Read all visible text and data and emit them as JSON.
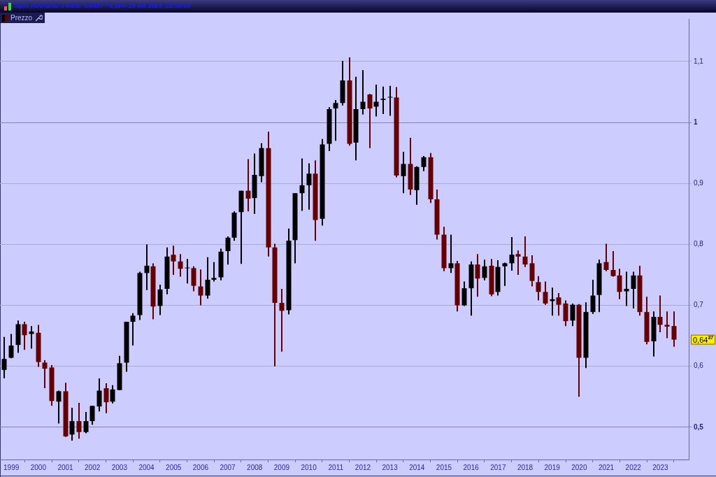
{
  "chart_data": {
    "type": "candlestick",
    "title": "Spot AUD/USD 3 mesi: 0,6437 +0,16% 29 set 2023, 22:59:59",
    "categories": [
      null,
      "1999",
      null,
      null,
      null,
      "2000",
      null,
      null,
      null,
      "2001",
      null,
      null,
      null,
      "2002",
      null,
      null,
      null,
      "2003",
      null,
      null,
      null,
      "2004",
      null,
      null,
      null,
      "2005",
      null,
      null,
      null,
      "2006",
      null,
      null,
      null,
      "2007",
      null,
      null,
      null,
      "2008",
      null,
      null,
      null,
      "2009",
      null,
      null,
      null,
      "2010",
      null,
      null,
      null,
      "2011",
      null,
      null,
      null,
      "2012",
      null,
      null,
      null,
      "2013",
      null,
      null,
      null,
      "2014",
      null,
      null,
      null,
      "2015",
      null,
      null,
      null,
      "2016",
      null,
      null,
      null,
      "2017",
      null,
      null,
      null,
      "2018",
      null,
      null,
      null,
      "2019",
      null,
      null,
      null,
      "2020",
      null,
      null,
      null,
      "2021",
      null,
      null,
      null,
      "2022",
      null,
      null,
      null,
      "2023",
      null,
      null
    ],
    "series": [
      {
        "name": "Prezzo",
        "ohlc": [
          [
            0.594,
            0.648,
            0.58,
            0.612
          ],
          [
            0.614,
            0.653,
            0.613,
            0.634
          ],
          [
            0.635,
            0.675,
            0.622,
            0.669
          ],
          [
            0.669,
            0.673,
            0.627,
            0.651
          ],
          [
            0.653,
            0.666,
            0.629,
            0.657
          ],
          [
            0.655,
            0.668,
            0.599,
            0.607
          ],
          [
            0.606,
            0.61,
            0.564,
            0.596
          ],
          [
            0.598,
            0.602,
            0.535,
            0.543
          ],
          [
            0.542,
            0.56,
            0.506,
            0.559
          ],
          [
            0.559,
            0.573,
            0.484,
            0.485
          ],
          [
            0.488,
            0.532,
            0.478,
            0.51
          ],
          [
            0.51,
            0.54,
            0.481,
            0.492
          ],
          [
            0.492,
            0.525,
            0.49,
            0.51
          ],
          [
            0.51,
            0.535,
            0.504,
            0.535
          ],
          [
            0.534,
            0.58,
            0.526,
            0.56
          ],
          [
            0.564,
            0.572,
            0.523,
            0.541
          ],
          [
            0.542,
            0.569,
            0.539,
            0.562
          ],
          [
            0.561,
            0.617,
            0.561,
            0.605
          ],
          [
            0.606,
            0.673,
            0.591,
            0.673
          ],
          [
            0.673,
            0.687,
            0.634,
            0.683
          ],
          [
            0.684,
            0.755,
            0.676,
            0.753
          ],
          [
            0.753,
            0.8,
            0.725,
            0.765
          ],
          [
            0.764,
            0.769,
            0.677,
            0.698
          ],
          [
            0.699,
            0.734,
            0.684,
            0.726
          ],
          [
            0.727,
            0.795,
            0.718,
            0.78
          ],
          [
            0.783,
            0.798,
            0.75,
            0.772
          ],
          [
            0.772,
            0.784,
            0.747,
            0.76
          ],
          [
            0.761,
            0.776,
            0.736,
            0.762
          ],
          [
            0.761,
            0.764,
            0.723,
            0.732
          ],
          [
            0.731,
            0.759,
            0.7,
            0.716
          ],
          [
            0.716,
            0.779,
            0.711,
            0.742
          ],
          [
            0.742,
            0.771,
            0.739,
            0.745
          ],
          [
            0.746,
            0.793,
            0.741,
            0.788
          ],
          [
            0.789,
            0.813,
            0.767,
            0.811
          ],
          [
            0.811,
            0.854,
            0.806,
            0.852
          ],
          [
            0.853,
            0.888,
            0.768,
            0.888
          ],
          [
            0.888,
            0.94,
            0.854,
            0.875
          ],
          [
            0.876,
            0.949,
            0.85,
            0.914
          ],
          [
            0.912,
            0.966,
            0.902,
            0.958
          ],
          [
            0.958,
            0.985,
            0.78,
            0.795
          ],
          [
            0.795,
            0.801,
            0.6,
            0.704
          ],
          [
            0.704,
            0.727,
            0.624,
            0.691
          ],
          [
            0.692,
            0.826,
            0.685,
            0.806
          ],
          [
            0.807,
            0.884,
            0.769,
            0.884
          ],
          [
            0.884,
            0.941,
            0.855,
            0.897
          ],
          [
            0.897,
            0.933,
            0.857,
            0.916
          ],
          [
            0.916,
            0.938,
            0.806,
            0.84
          ],
          [
            0.842,
            0.973,
            0.831,
            0.964
          ],
          [
            0.965,
            1.025,
            0.953,
            1.022
          ],
          [
            1.023,
            1.037,
            0.97,
            1.032
          ],
          [
            1.032,
            1.101,
            1.028,
            1.069
          ],
          [
            1.069,
            1.107,
            0.962,
            0.965
          ],
          [
            0.967,
            1.075,
            0.938,
            1.022
          ],
          [
            1.022,
            1.086,
            1.013,
            1.034
          ],
          [
            1.046,
            1.047,
            0.958,
            1.023
          ],
          [
            1.026,
            1.062,
            1.01,
            1.034
          ],
          [
            1.037,
            1.059,
            1.014,
            1.039
          ],
          [
            1.041,
            1.06,
            1.011,
            1.042
          ],
          [
            1.041,
            1.058,
            0.91,
            0.913
          ],
          [
            0.912,
            0.952,
            0.884,
            0.932
          ],
          [
            0.932,
            0.975,
            0.881,
            0.89
          ],
          [
            0.889,
            0.928,
            0.865,
            0.927
          ],
          [
            0.927,
            0.945,
            0.92,
            0.943
          ],
          [
            0.943,
            0.95,
            0.868,
            0.874
          ],
          [
            0.874,
            0.89,
            0.808,
            0.816
          ],
          [
            0.816,
            0.829,
            0.756,
            0.761
          ],
          [
            0.761,
            0.816,
            0.753,
            0.769
          ],
          [
            0.769,
            0.773,
            0.69,
            0.7
          ],
          [
            0.7,
            0.739,
            0.699,
            0.728
          ],
          [
            0.728,
            0.772,
            0.683,
            0.767
          ],
          [
            0.767,
            0.784,
            0.714,
            0.744
          ],
          [
            0.745,
            0.775,
            0.741,
            0.764
          ],
          [
            0.765,
            0.776,
            0.715,
            0.718
          ],
          [
            0.722,
            0.774,
            0.716,
            0.763
          ],
          [
            0.764,
            0.77,
            0.732,
            0.769
          ],
          [
            0.769,
            0.812,
            0.757,
            0.783
          ],
          [
            0.784,
            0.79,
            0.75,
            0.78
          ],
          [
            0.78,
            0.813,
            0.763,
            0.767
          ],
          [
            0.769,
            0.782,
            0.731,
            0.74
          ],
          [
            0.738,
            0.748,
            0.708,
            0.722
          ],
          [
            0.722,
            0.739,
            0.701,
            0.703
          ],
          [
            0.707,
            0.729,
            0.683,
            0.71
          ],
          [
            0.713,
            0.72,
            0.683,
            0.701
          ],
          [
            0.703,
            0.708,
            0.666,
            0.674
          ],
          [
            0.675,
            0.703,
            0.666,
            0.701
          ],
          [
            0.701,
            0.702,
            0.55,
            0.614
          ],
          [
            0.614,
            0.705,
            0.597,
            0.689
          ],
          [
            0.689,
            0.742,
            0.686,
            0.716
          ],
          [
            0.717,
            0.775,
            0.689,
            0.769
          ],
          [
            0.771,
            0.801,
            0.756,
            0.758
          ],
          [
            0.758,
            0.789,
            0.747,
            0.748
          ],
          [
            0.749,
            0.76,
            0.71,
            0.722
          ],
          [
            0.723,
            0.755,
            0.699,
            0.727
          ],
          [
            0.727,
            0.755,
            0.695,
            0.749
          ],
          [
            0.749,
            0.765,
            0.683,
            0.689
          ],
          [
            0.689,
            0.714,
            0.636,
            0.64
          ],
          [
            0.641,
            0.69,
            0.616,
            0.681
          ],
          [
            0.681,
            0.716,
            0.656,
            0.668
          ],
          [
            0.668,
            0.69,
            0.646,
            0.665
          ],
          [
            0.666,
            0.69,
            0.632,
            0.6437
          ]
        ],
        "colors": [
          "#000000",
          "#000000",
          "#000000",
          "#660000",
          "#000000",
          "#660000",
          "#660000",
          "#660000",
          "#000000",
          "#660000",
          "#000000",
          "#660000",
          "#000000",
          "#000000",
          "#000000",
          "#660000",
          "#000000",
          "#000000",
          "#000000",
          "#000000",
          "#000000",
          "#000000",
          "#660000",
          "#000000",
          "#000000",
          "#660000",
          "#660000",
          "#000000",
          "#660000",
          "#660000",
          "#000000",
          "#000000",
          "#000000",
          "#000000",
          "#000000",
          "#000000",
          "#660000",
          "#000000",
          "#000000",
          "#660000",
          "#660000",
          "#660000",
          "#000000",
          "#000000",
          "#000000",
          "#000000",
          "#660000",
          "#000000",
          "#000000",
          "#000000",
          "#000000",
          "#660000",
          "#000000",
          "#000000",
          "#660000",
          "#000000",
          "#000000",
          "#000000",
          "#660000",
          "#000000",
          "#660000",
          "#000000",
          "#000000",
          "#660000",
          "#660000",
          "#660000",
          "#000000",
          "#660000",
          "#000000",
          "#000000",
          "#660000",
          "#000000",
          "#660000",
          "#000000",
          "#000000",
          "#000000",
          "#660000",
          "#660000",
          "#660000",
          "#660000",
          "#660000",
          "#000000",
          "#660000",
          "#660000",
          "#000000",
          "#660000",
          "#000000",
          "#000000",
          "#000000",
          "#660000",
          "#660000",
          "#660000",
          "#000000",
          "#000000",
          "#660000",
          "#660000",
          "#000000",
          "#660000",
          "#660000",
          "#660000"
        ]
      }
    ],
    "ylim": [
      0.447,
      1.17
    ],
    "yticks": [
      {
        "value": 0.5,
        "label": "0,5"
      },
      {
        "value": 0.6,
        "label": "0,6"
      },
      {
        "value": 0.7,
        "label": "0,7"
      },
      {
        "value": 0.8,
        "label": "0,8"
      },
      {
        "value": 0.9,
        "label": "0,9"
      },
      1,
      {
        "value": 1.1,
        "label": "1,1"
      }
    ],
    "grid": "y",
    "legend": "top left",
    "annotations": [
      "0,64$^{37}$"
    ]
  }
}
